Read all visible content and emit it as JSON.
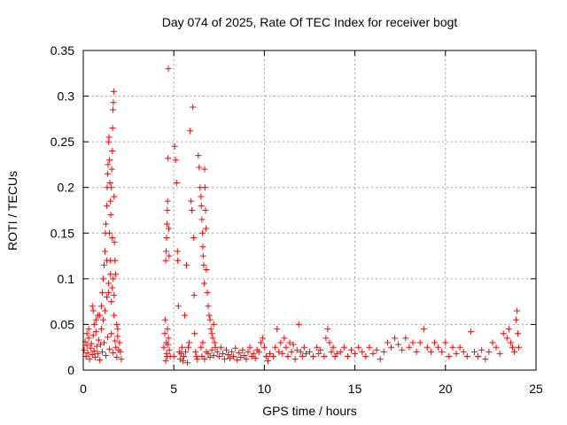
{
  "chart_data": {
    "type": "scatter",
    "title": "Day 074 of 2025, Rate Of TEC Index for receiver bogt",
    "xlabel": "GPS time / hours",
    "ylabel": "ROTI / TECUs",
    "xlim": [
      0,
      25
    ],
    "ylim": [
      0,
      0.35
    ],
    "xticks": [
      0,
      5,
      10,
      15,
      20,
      25
    ],
    "xtick_labels": [
      "0",
      "5",
      "10",
      "15",
      "20",
      "25"
    ],
    "yticks": [
      0,
      0.05,
      0.1,
      0.15,
      0.2,
      0.25,
      0.3,
      0.35
    ],
    "ytick_labels": [
      "0",
      "0.05",
      "0.1",
      "0.15",
      "0.2",
      "0.25",
      "0.3",
      "0.35"
    ],
    "grid": true,
    "marker": "+",
    "color": "#ff0000",
    "series": [
      {
        "points": [
          [
            0.05,
            0.022
          ],
          [
            0.1,
            0.031
          ],
          [
            0.15,
            0.015
          ],
          [
            0.2,
            0.027
          ],
          [
            0.25,
            0.019
          ],
          [
            0.3,
            0.035
          ],
          [
            0.35,
            0.012
          ],
          [
            0.4,
            0.024
          ],
          [
            0.45,
            0.029
          ],
          [
            0.5,
            0.017
          ],
          [
            0.55,
            0.038
          ],
          [
            0.6,
            0.021
          ],
          [
            0.65,
            0.014
          ],
          [
            0.7,
            0.042
          ],
          [
            0.75,
            0.026
          ],
          [
            0.8,
            0.018
          ],
          [
            0.85,
            0.033
          ],
          [
            0.9,
            0.011
          ],
          [
            0.95,
            0.028
          ],
          [
            1.0,
            0.045
          ],
          [
            1.05,
            0.02
          ],
          [
            1.1,
            0.055
          ],
          [
            1.15,
            0.03
          ],
          [
            1.2,
            0.065
          ],
          [
            1.25,
            0.016
          ],
          [
            1.3,
            0.08
          ],
          [
            1.35,
            0.036
          ],
          [
            1.4,
            0.095
          ],
          [
            1.45,
            0.023
          ],
          [
            1.5,
            0.12
          ],
          [
            1.55,
            0.04
          ],
          [
            1.6,
            0.09
          ],
          [
            1.65,
            0.019
          ],
          [
            1.7,
            0.06
          ],
          [
            1.75,
            0.032
          ],
          [
            1.8,
            0.025
          ],
          [
            1.85,
            0.014
          ],
          [
            1.9,
            0.037
          ],
          [
            1.95,
            0.022
          ],
          [
            2.0,
            0.03
          ],
          [
            0.5,
            0.07
          ],
          [
            0.55,
            0.065
          ],
          [
            0.6,
            0.05
          ],
          [
            0.9,
            0.06
          ],
          [
            1.0,
            0.07
          ],
          [
            1.05,
            0.085
          ],
          [
            1.1,
            0.1
          ],
          [
            1.15,
            0.115
          ],
          [
            1.2,
            0.13
          ],
          [
            1.22,
            0.15
          ],
          [
            1.25,
            0.16
          ],
          [
            1.3,
            0.18
          ],
          [
            1.32,
            0.2
          ],
          [
            1.35,
            0.215
          ],
          [
            1.37,
            0.225
          ],
          [
            1.4,
            0.25
          ],
          [
            1.42,
            0.255
          ],
          [
            1.45,
            0.23
          ],
          [
            1.47,
            0.205
          ],
          [
            1.5,
            0.185
          ],
          [
            1.52,
            0.17
          ],
          [
            1.55,
            0.2
          ],
          [
            1.57,
            0.22
          ],
          [
            1.6,
            0.24
          ],
          [
            1.62,
            0.265
          ],
          [
            1.64,
            0.285
          ],
          [
            1.66,
            0.293
          ],
          [
            1.68,
            0.305
          ],
          [
            1.7,
            0.19
          ],
          [
            1.72,
            0.14
          ],
          [
            1.75,
            0.12
          ],
          [
            1.78,
            0.105
          ],
          [
            1.3,
            0.12
          ],
          [
            1.4,
            0.085
          ],
          [
            1.45,
            0.15
          ],
          [
            1.5,
            0.105
          ],
          [
            1.6,
            0.145
          ],
          [
            1.55,
            0.075
          ],
          [
            1.65,
            0.1
          ],
          [
            1.7,
            0.082
          ],
          [
            0.2,
            0.04
          ],
          [
            0.3,
            0.045
          ],
          [
            0.7,
            0.055
          ],
          [
            0.8,
            0.06
          ],
          [
            1.85,
            0.05
          ],
          [
            1.9,
            0.045
          ],
          [
            2.05,
            0.02
          ],
          [
            2.1,
            0.012
          ],
          [
            4.45,
            0.025
          ],
          [
            4.5,
            0.04
          ],
          [
            4.52,
            0.055
          ],
          [
            4.55,
            0.12
          ],
          [
            4.57,
            0.13
          ],
          [
            4.6,
            0.145
          ],
          [
            4.62,
            0.16
          ],
          [
            4.64,
            0.175
          ],
          [
            4.66,
            0.185
          ],
          [
            4.68,
            0.232
          ],
          [
            4.7,
            0.33
          ],
          [
            4.72,
            0.155
          ],
          [
            4.74,
            0.125
          ],
          [
            4.58,
            0.03
          ],
          [
            4.6,
            0.018
          ],
          [
            4.65,
            0.045
          ],
          [
            4.7,
            0.035
          ],
          [
            4.75,
            0.022
          ],
          [
            4.8,
            0.015
          ],
          [
            4.55,
            0.01
          ],
          [
            4.62,
            0.015
          ],
          [
            4.68,
            0.028
          ],
          [
            5.0,
            0.015
          ],
          [
            5.05,
            0.245
          ],
          [
            5.1,
            0.23
          ],
          [
            5.15,
            0.205
          ],
          [
            5.2,
            0.13
          ],
          [
            5.22,
            0.12
          ],
          [
            5.25,
            0.07
          ],
          [
            5.3,
            0.02
          ],
          [
            5.35,
            0.012
          ],
          [
            5.4,
            0.018
          ],
          [
            5.45,
            0.025
          ],
          [
            5.5,
            0.01
          ],
          [
            5.55,
            0.015
          ],
          [
            5.6,
            0.06
          ],
          [
            5.65,
            0.02
          ],
          [
            5.7,
            0.115
          ],
          [
            5.75,
            0.008
          ],
          [
            5.8,
            0.025
          ],
          [
            5.85,
            0.03
          ],
          [
            5.9,
            0.262
          ],
          [
            5.95,
            0.185
          ],
          [
            6.0,
            0.175
          ],
          [
            6.05,
            0.288
          ],
          [
            6.1,
            0.145
          ],
          [
            6.12,
            0.082
          ],
          [
            6.15,
            0.04
          ],
          [
            6.2,
            0.02
          ],
          [
            6.25,
            0.015
          ],
          [
            6.3,
            0.012
          ],
          [
            6.35,
            0.235
          ],
          [
            6.4,
            0.222
          ],
          [
            6.45,
            0.2
          ],
          [
            6.5,
            0.19
          ],
          [
            6.52,
            0.18
          ],
          [
            6.55,
            0.165
          ],
          [
            6.58,
            0.15
          ],
          [
            6.6,
            0.135
          ],
          [
            6.62,
            0.125
          ],
          [
            6.65,
            0.115
          ],
          [
            6.68,
            0.095
          ],
          [
            6.7,
            0.22
          ],
          [
            6.72,
            0.2
          ],
          [
            6.75,
            0.175
          ],
          [
            6.78,
            0.155
          ],
          [
            6.8,
            0.11
          ],
          [
            6.85,
            0.085
          ],
          [
            6.9,
            0.07
          ],
          [
            6.95,
            0.06
          ],
          [
            7.0,
            0.055
          ],
          [
            7.05,
            0.045
          ],
          [
            7.1,
            0.04
          ],
          [
            7.15,
            0.035
          ],
          [
            7.2,
            0.05
          ],
          [
            7.25,
            0.03
          ],
          [
            7.3,
            0.025
          ],
          [
            6.5,
            0.025
          ],
          [
            6.55,
            0.015
          ],
          [
            6.6,
            0.03
          ],
          [
            6.7,
            0.012
          ],
          [
            6.8,
            0.02
          ],
          [
            6.9,
            0.018
          ],
          [
            7.0,
            0.014
          ],
          [
            7.1,
            0.022
          ],
          [
            7.2,
            0.016
          ],
          [
            7.4,
            0.02
          ],
          [
            7.5,
            0.015
          ],
          [
            7.6,
            0.025
          ],
          [
            7.7,
            0.018
          ],
          [
            7.8,
            0.012
          ],
          [
            7.9,
            0.022
          ],
          [
            8.0,
            0.017
          ],
          [
            8.1,
            0.013
          ],
          [
            8.2,
            0.02
          ],
          [
            8.3,
            0.015
          ],
          [
            8.4,
            0.024
          ],
          [
            8.5,
            0.011
          ],
          [
            8.6,
            0.019
          ],
          [
            8.7,
            0.014
          ],
          [
            8.8,
            0.022
          ],
          [
            8.9,
            0.016
          ],
          [
            9.0,
            0.012
          ],
          [
            9.1,
            0.02
          ],
          [
            9.2,
            0.025
          ],
          [
            9.3,
            0.015
          ],
          [
            9.4,
            0.018
          ],
          [
            9.5,
            0.013
          ],
          [
            9.6,
            0.022
          ],
          [
            9.7,
            0.02
          ],
          [
            9.8,
            0.03
          ],
          [
            9.9,
            0.035
          ],
          [
            10.0,
            0.025
          ],
          [
            10.1,
            0.015
          ],
          [
            10.2,
            0.01
          ],
          [
            10.3,
            0.018
          ],
          [
            10.5,
            0.015
          ],
          [
            10.6,
            0.025
          ],
          [
            10.7,
            0.045
          ],
          [
            10.8,
            0.02
          ],
          [
            10.9,
            0.03
          ],
          [
            11.0,
            0.018
          ],
          [
            11.1,
            0.035
          ],
          [
            11.2,
            0.025
          ],
          [
            11.3,
            0.015
          ],
          [
            11.4,
            0.03
          ],
          [
            11.5,
            0.02
          ],
          [
            11.6,
            0.028
          ],
          [
            11.7,
            0.012
          ],
          [
            11.8,
            0.022
          ],
          [
            11.9,
            0.05
          ],
          [
            12.0,
            0.02
          ],
          [
            12.1,
            0.015
          ],
          [
            12.2,
            0.025
          ],
          [
            12.3,
            0.018
          ],
          [
            12.5,
            0.02
          ],
          [
            12.7,
            0.015
          ],
          [
            12.9,
            0.025
          ],
          [
            13.0,
            0.018
          ],
          [
            13.1,
            0.022
          ],
          [
            13.3,
            0.015
          ],
          [
            13.4,
            0.035
          ],
          [
            13.5,
            0.045
          ],
          [
            13.6,
            0.03
          ],
          [
            13.7,
            0.02
          ],
          [
            13.8,
            0.025
          ],
          [
            13.9,
            0.015
          ],
          [
            14.0,
            0.018
          ],
          [
            14.2,
            0.02
          ],
          [
            14.4,
            0.025
          ],
          [
            14.6,
            0.015
          ],
          [
            14.8,
            0.022
          ],
          [
            15.0,
            0.018
          ],
          [
            15.2,
            0.025
          ],
          [
            15.4,
            0.02
          ],
          [
            15.6,
            0.015
          ],
          [
            15.8,
            0.025
          ],
          [
            16.0,
            0.018
          ],
          [
            16.2,
            0.022
          ],
          [
            16.4,
            0.012
          ],
          [
            16.6,
            0.02
          ],
          [
            16.8,
            0.03
          ],
          [
            17.0,
            0.025
          ],
          [
            17.2,
            0.035
          ],
          [
            17.4,
            0.028
          ],
          [
            17.6,
            0.022
          ],
          [
            17.8,
            0.035
          ],
          [
            18.0,
            0.025
          ],
          [
            18.2,
            0.03
          ],
          [
            18.4,
            0.02
          ],
          [
            18.6,
            0.03
          ],
          [
            18.8,
            0.045
          ],
          [
            19.0,
            0.025
          ],
          [
            19.2,
            0.02
          ],
          [
            19.4,
            0.03
          ],
          [
            19.6,
            0.025
          ],
          [
            19.8,
            0.02
          ],
          [
            20.0,
            0.03
          ],
          [
            20.2,
            0.015
          ],
          [
            20.4,
            0.025
          ],
          [
            20.6,
            0.018
          ],
          [
            20.8,
            0.025
          ],
          [
            21.0,
            0.02
          ],
          [
            21.2,
            0.015
          ],
          [
            21.4,
            0.042
          ],
          [
            21.6,
            0.02
          ],
          [
            21.8,
            0.015
          ],
          [
            22.0,
            0.022
          ],
          [
            22.2,
            0.012
          ],
          [
            22.4,
            0.02
          ],
          [
            22.6,
            0.03
          ],
          [
            22.8,
            0.025
          ],
          [
            23.0,
            0.018
          ],
          [
            23.2,
            0.04
          ],
          [
            23.4,
            0.035
          ],
          [
            23.5,
            0.045
          ],
          [
            23.6,
            0.03
          ],
          [
            23.7,
            0.025
          ],
          [
            23.8,
            0.02
          ],
          [
            23.9,
            0.055
          ],
          [
            23.95,
            0.065
          ],
          [
            24.0,
            0.04
          ],
          [
            24.05,
            0.025
          ]
        ]
      }
    ]
  }
}
